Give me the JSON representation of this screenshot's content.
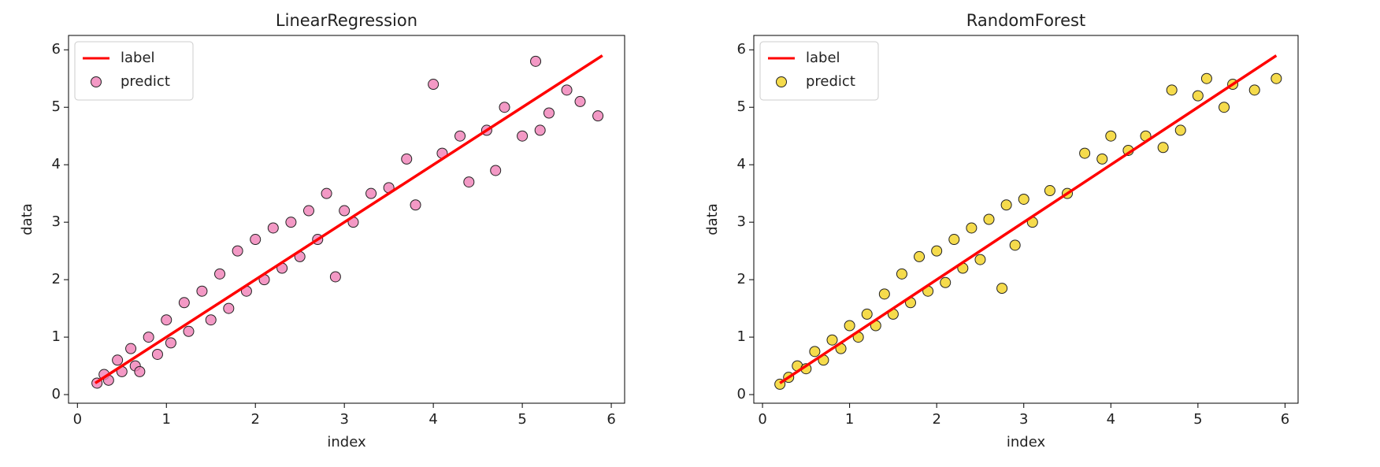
{
  "chart_data": [
    {
      "type": "scatter",
      "title": "LinearRegression",
      "xlabel": "index",
      "ylabel": "data",
      "xlim": [
        -0.1,
        6.15
      ],
      "ylim": [
        -0.15,
        6.25
      ],
      "xticks": [
        0,
        1,
        2,
        3,
        4,
        5,
        6
      ],
      "yticks": [
        0,
        1,
        2,
        3,
        4,
        5,
        6
      ],
      "legend": "upper left",
      "series": [
        {
          "name": "label",
          "type": "line",
          "color": "#ff0000",
          "x": [
            0.2,
            5.9
          ],
          "values": [
            0.2,
            5.9
          ]
        },
        {
          "name": "predict",
          "type": "scatter",
          "color": "#f07fb6",
          "x": [
            0.22,
            0.3,
            0.35,
            0.45,
            0.5,
            0.6,
            0.65,
            0.7,
            0.8,
            0.9,
            1.0,
            1.05,
            1.2,
            1.25,
            1.4,
            1.5,
            1.6,
            1.7,
            1.8,
            1.9,
            2.0,
            2.1,
            2.2,
            2.3,
            2.4,
            2.5,
            2.6,
            2.7,
            2.8,
            2.9,
            3.0,
            3.1,
            3.3,
            3.5,
            3.7,
            3.8,
            4.0,
            4.1,
            4.3,
            4.4,
            4.6,
            4.7,
            4.8,
            5.0,
            5.15,
            5.2,
            5.3,
            5.5,
            5.65,
            5.85
          ],
          "values": [
            0.2,
            0.35,
            0.25,
            0.6,
            0.4,
            0.8,
            0.5,
            0.4,
            1.0,
            0.7,
            1.3,
            0.9,
            1.6,
            1.1,
            1.8,
            1.3,
            2.1,
            1.5,
            2.5,
            1.8,
            2.7,
            2.0,
            2.9,
            2.2,
            3.0,
            2.4,
            3.2,
            2.7,
            3.5,
            2.05,
            3.2,
            3.0,
            3.5,
            3.6,
            4.1,
            3.3,
            5.4,
            4.2,
            4.5,
            3.7,
            4.6,
            3.9,
            5.0,
            4.5,
            5.8,
            4.6,
            4.9,
            5.3,
            5.1,
            4.85
          ]
        }
      ]
    },
    {
      "type": "scatter",
      "title": "RandomForest",
      "xlabel": "index",
      "ylabel": "data",
      "xlim": [
        -0.1,
        6.15
      ],
      "ylim": [
        -0.15,
        6.25
      ],
      "xticks": [
        0,
        1,
        2,
        3,
        4,
        5,
        6
      ],
      "yticks": [
        0,
        1,
        2,
        3,
        4,
        5,
        6
      ],
      "legend": "upper left",
      "series": [
        {
          "name": "label",
          "type": "line",
          "color": "#ff0000",
          "x": [
            0.2,
            5.9
          ],
          "values": [
            0.2,
            5.9
          ]
        },
        {
          "name": "predict",
          "type": "scatter",
          "color": "#f2d21f",
          "x": [
            0.2,
            0.3,
            0.4,
            0.5,
            0.6,
            0.7,
            0.8,
            0.9,
            1.0,
            1.1,
            1.2,
            1.3,
            1.4,
            1.5,
            1.6,
            1.7,
            1.8,
            1.9,
            2.0,
            2.1,
            2.2,
            2.3,
            2.4,
            2.5,
            2.6,
            2.75,
            2.8,
            2.9,
            3.0,
            3.1,
            3.3,
            3.5,
            3.7,
            3.9,
            4.0,
            4.2,
            4.4,
            4.6,
            4.7,
            4.8,
            5.0,
            5.1,
            5.3,
            5.4,
            5.65,
            5.9
          ],
          "values": [
            0.18,
            0.3,
            0.5,
            0.45,
            0.75,
            0.6,
            0.95,
            0.8,
            1.2,
            1.0,
            1.4,
            1.2,
            1.75,
            1.4,
            2.1,
            1.6,
            2.4,
            1.8,
            2.5,
            1.95,
            2.7,
            2.2,
            2.9,
            2.35,
            3.05,
            1.85,
            3.3,
            2.6,
            3.4,
            3.0,
            3.55,
            3.5,
            4.2,
            4.1,
            4.5,
            4.25,
            4.5,
            4.3,
            5.3,
            4.6,
            5.2,
            5.5,
            5.0,
            5.4,
            5.3,
            5.5
          ]
        }
      ]
    }
  ]
}
